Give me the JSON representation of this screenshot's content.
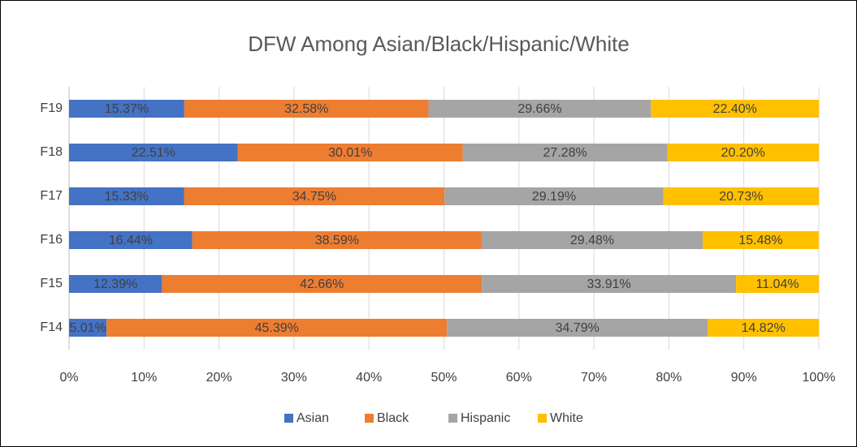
{
  "chart_data": {
    "type": "stacked-bar-horizontal",
    "title": "DFW Among Asian/Black/Hispanic/White",
    "categories": [
      "F19",
      "F18",
      "F17",
      "F16",
      "F15",
      "F14"
    ],
    "series": [
      {
        "name": "Asian",
        "color": "#4472c4",
        "values": [
          15.37,
          22.51,
          15.33,
          16.44,
          12.39,
          5.01
        ],
        "value_labels": [
          "15.37%",
          "22.51%",
          "15.33%",
          "16.44%",
          "12.39%",
          "5.01%"
        ]
      },
      {
        "name": "Black",
        "color": "#ed7d31",
        "values": [
          32.58,
          30.01,
          34.75,
          38.59,
          42.66,
          45.39
        ],
        "value_labels": [
          "32.58%",
          "30.01%",
          "34.75%",
          "38.59%",
          "42.66%",
          "45.39%"
        ]
      },
      {
        "name": "Hispanic",
        "color": "#a5a5a5",
        "values": [
          29.66,
          27.28,
          29.19,
          29.48,
          33.91,
          34.79
        ],
        "value_labels": [
          "29.66%",
          "27.28%",
          "29.19%",
          "29.48%",
          "33.91%",
          "34.79%"
        ]
      },
      {
        "name": "White",
        "color": "#ffc000",
        "values": [
          22.4,
          20.2,
          20.73,
          15.48,
          11.04,
          14.82
        ],
        "value_labels": [
          "22.40%",
          "20.20%",
          "20.73%",
          "15.48%",
          "11.04%",
          "14.82%"
        ]
      }
    ],
    "xlim": [
      0,
      100
    ],
    "xticks": [
      {
        "value": 0,
        "label": "0%"
      },
      {
        "value": 10,
        "label": "10%"
      },
      {
        "value": 20,
        "label": "20%"
      },
      {
        "value": 30,
        "label": "30%"
      },
      {
        "value": 40,
        "label": "40%"
      },
      {
        "value": 50,
        "label": "50%"
      },
      {
        "value": 60,
        "label": "60%"
      },
      {
        "value": 70,
        "label": "70%"
      },
      {
        "value": 80,
        "label": "80%"
      },
      {
        "value": 90,
        "label": "90%"
      },
      {
        "value": 100,
        "label": "100%"
      }
    ],
    "grid": true,
    "legend": "bottom"
  }
}
